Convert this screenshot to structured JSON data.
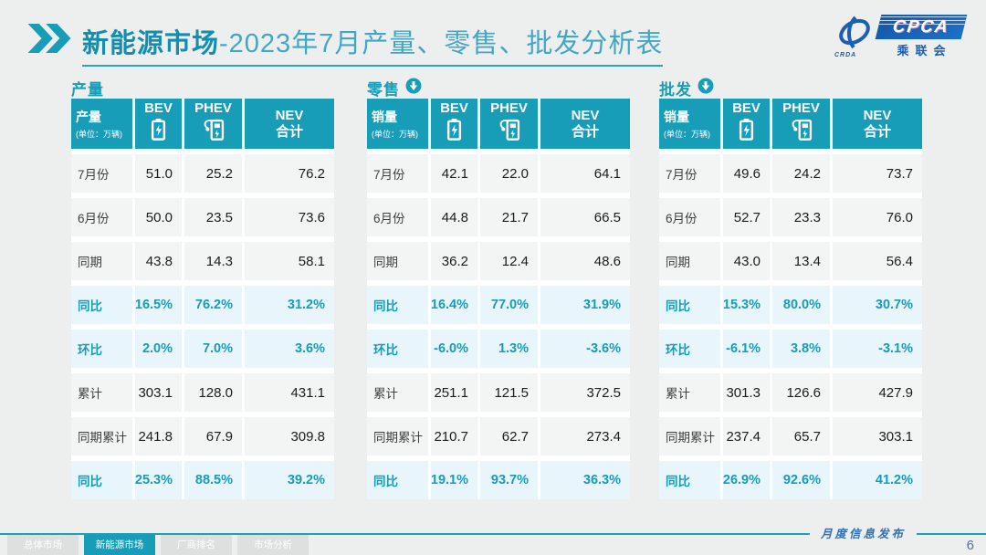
{
  "header": {
    "title_bold": "新能源市场",
    "title_rest": "-2023年7月产量、零售、批发分析表",
    "logo": {
      "brand": "CPCA",
      "swirl_caption": "CRDA",
      "brand_cn": "乘联会"
    }
  },
  "tables": [
    {
      "id": "production",
      "section_label": "产量",
      "download_icon": false,
      "metric_label": "产量",
      "unit": "(单位：万辆)",
      "col_bev": "BEV",
      "col_phev": "PHEV",
      "col_nev_line1": "NEV",
      "col_nev_line2": "合计",
      "rows": [
        {
          "label": "7月份",
          "highlight": false,
          "values": [
            "51.0",
            "25.2",
            "76.2"
          ]
        },
        {
          "label": "6月份",
          "highlight": false,
          "values": [
            "50.0",
            "23.5",
            "73.6"
          ]
        },
        {
          "label": "同期",
          "highlight": false,
          "values": [
            "43.8",
            "14.3",
            "58.1"
          ]
        },
        {
          "label": "同比",
          "highlight": true,
          "values": [
            "16.5%",
            "76.2%",
            "31.2%"
          ]
        },
        {
          "label": "环比",
          "highlight": true,
          "values": [
            "2.0%",
            "7.0%",
            "3.6%"
          ]
        },
        {
          "label": "累计",
          "highlight": false,
          "values": [
            "303.1",
            "128.0",
            "431.1"
          ]
        },
        {
          "label": "同期累计",
          "highlight": false,
          "values": [
            "241.8",
            "67.9",
            "309.8"
          ]
        },
        {
          "label": "同比",
          "highlight": true,
          "values": [
            "25.3%",
            "88.5%",
            "39.2%"
          ]
        }
      ]
    },
    {
      "id": "retail",
      "section_label": "零售",
      "download_icon": true,
      "metric_label": "销量",
      "unit": "(单位：万辆)",
      "col_bev": "BEV",
      "col_phev": "PHEV",
      "col_nev_line1": "NEV",
      "col_nev_line2": "合计",
      "rows": [
        {
          "label": "7月份",
          "highlight": false,
          "values": [
            "42.1",
            "22.0",
            "64.1"
          ]
        },
        {
          "label": "6月份",
          "highlight": false,
          "values": [
            "44.8",
            "21.7",
            "66.5"
          ]
        },
        {
          "label": "同期",
          "highlight": false,
          "values": [
            "36.2",
            "12.4",
            "48.6"
          ]
        },
        {
          "label": "同比",
          "highlight": true,
          "values": [
            "16.4%",
            "77.0%",
            "31.9%"
          ]
        },
        {
          "label": "环比",
          "highlight": true,
          "values": [
            "-6.0%",
            "1.3%",
            "-3.6%"
          ]
        },
        {
          "label": "累计",
          "highlight": false,
          "values": [
            "251.1",
            "121.5",
            "372.5"
          ]
        },
        {
          "label": "同期累计",
          "highlight": false,
          "values": [
            "210.7",
            "62.7",
            "273.4"
          ]
        },
        {
          "label": "同比",
          "highlight": true,
          "values": [
            "19.1%",
            "93.7%",
            "36.3%"
          ]
        }
      ]
    },
    {
      "id": "wholesale",
      "section_label": "批发",
      "download_icon": true,
      "metric_label": "销量",
      "unit": "(单位：万辆)",
      "col_bev": "BEV",
      "col_phev": "PHEV",
      "col_nev_line1": "NEV",
      "col_nev_line2": "合计",
      "rows": [
        {
          "label": "7月份",
          "highlight": false,
          "values": [
            "49.6",
            "24.2",
            "73.7"
          ]
        },
        {
          "label": "6月份",
          "highlight": false,
          "values": [
            "52.7",
            "23.3",
            "76.0"
          ]
        },
        {
          "label": "同期",
          "highlight": false,
          "values": [
            "43.0",
            "13.4",
            "56.4"
          ]
        },
        {
          "label": "同比",
          "highlight": true,
          "values": [
            "15.3%",
            "80.0%",
            "30.7%"
          ]
        },
        {
          "label": "环比",
          "highlight": true,
          "values": [
            "-6.1%",
            "3.8%",
            "-3.1%"
          ]
        },
        {
          "label": "累计",
          "highlight": false,
          "values": [
            "301.3",
            "126.6",
            "427.9"
          ]
        },
        {
          "label": "同期累计",
          "highlight": false,
          "values": [
            "237.4",
            "65.7",
            "303.1"
          ]
        },
        {
          "label": "同比",
          "highlight": true,
          "values": [
            "26.9%",
            "92.6%",
            "41.2%"
          ]
        }
      ]
    }
  ],
  "footer": {
    "tabs": [
      {
        "label": "总体市场",
        "active": false
      },
      {
        "label": "新能源市场",
        "active": true
      },
      {
        "label": "厂商排名",
        "active": false
      },
      {
        "label": "市场分析",
        "active": false
      }
    ],
    "publish_label": "月度信息发布",
    "page_number": "6"
  },
  "colors": {
    "accent_teal": "#189DB9",
    "highlight_row_bg": "#E8F5FA",
    "logo_blue": "#1A5FB0",
    "page_bg": "#EDEFEF"
  },
  "watermark_text": "CPCA"
}
